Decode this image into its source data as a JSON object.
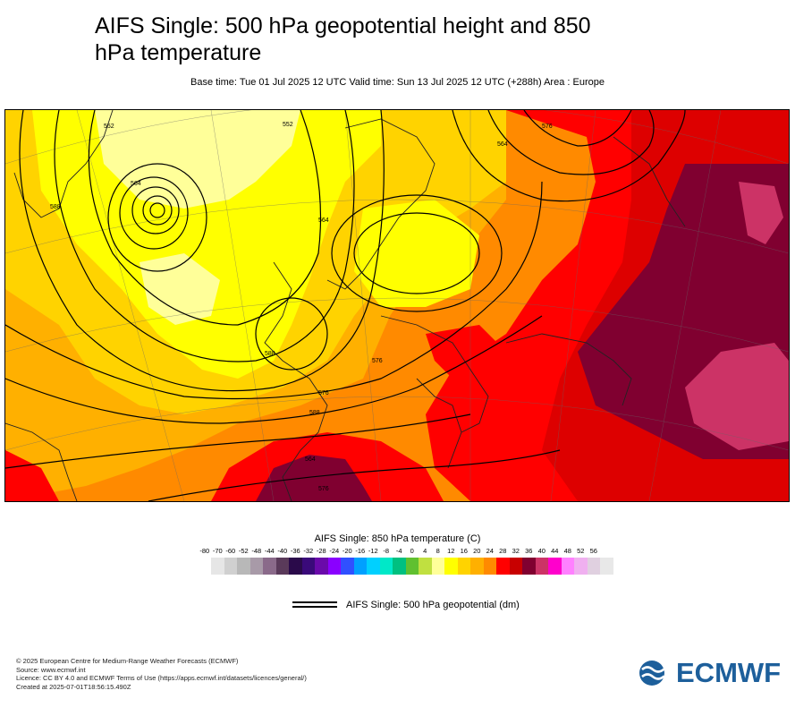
{
  "header": {
    "title": "AIFS Single: 500 hPa geopotential height and 850 hPa temperature",
    "subtitle": "Base time: Tue 01 Jul 2025 12 UTC Valid time: Sun 13 Jul 2025 12 UTC (+288h) Area : Europe"
  },
  "map": {
    "contour_labels": [
      "552",
      "564",
      "576",
      "588",
      "564",
      "576",
      "588",
      "552",
      "564",
      "576",
      "588",
      "564",
      "576"
    ],
    "colors": {
      "yellow_pale": "#ffff99",
      "yellow": "#ffff00",
      "gold": "#ffd300",
      "orange_light": "#ffb000",
      "orange": "#ff8a00",
      "orange_dark": "#ff6a00",
      "red": "#ff0000",
      "red_dark": "#dd0000",
      "maroon": "#c8002a",
      "maroon_dark": "#800030",
      "pink": "#cc3366"
    }
  },
  "colorbar": {
    "title": "AIFS Single: 850 hPa temperature (C)",
    "ticks": [
      "-80",
      "-70",
      "-60",
      "-52",
      "-48",
      "-44",
      "-40",
      "-36",
      "-32",
      "-28",
      "-24",
      "-20",
      "-16",
      "-12",
      "-8",
      "-4",
      "0",
      "4",
      "8",
      "12",
      "16",
      "20",
      "24",
      "28",
      "32",
      "36",
      "40",
      "44",
      "48",
      "52",
      "56"
    ],
    "colors": [
      "#e6e6e6",
      "#d0d0d0",
      "#b8b8b8",
      "#a89aa8",
      "#8a6a8a",
      "#5a3a5a",
      "#2a0a4a",
      "#3a0a7a",
      "#6a0aaa",
      "#8a00ff",
      "#3050ff",
      "#00a0ff",
      "#00d0ff",
      "#00e8c8",
      "#00c080",
      "#60c030",
      "#c0e040",
      "#ffff99",
      "#ffff00",
      "#ffd300",
      "#ffb000",
      "#ff8a00",
      "#ff0000",
      "#c80000",
      "#800030",
      "#cc3366",
      "#ff00cc",
      "#ff80ff",
      "#f0b0f0",
      "#e0d0e0",
      "#e8e8e8"
    ]
  },
  "legend": {
    "label": "AIFS Single: 500 hPa geopotential (dm)"
  },
  "footer": {
    "lines": [
      "© 2025 European Centre for Medium-Range Weather Forecasts (ECMWF)",
      "Source: www.ecmwf.int",
      "Licence: CC BY 4.0 and ECMWF Terms of Use (https://apps.ecmwf.int/datasets/licences/general/)",
      "Created at 2025-07-01T18:56:15.490Z"
    ]
  },
  "logo": {
    "text": "ECMWF",
    "color": "#1d5f9b"
  }
}
